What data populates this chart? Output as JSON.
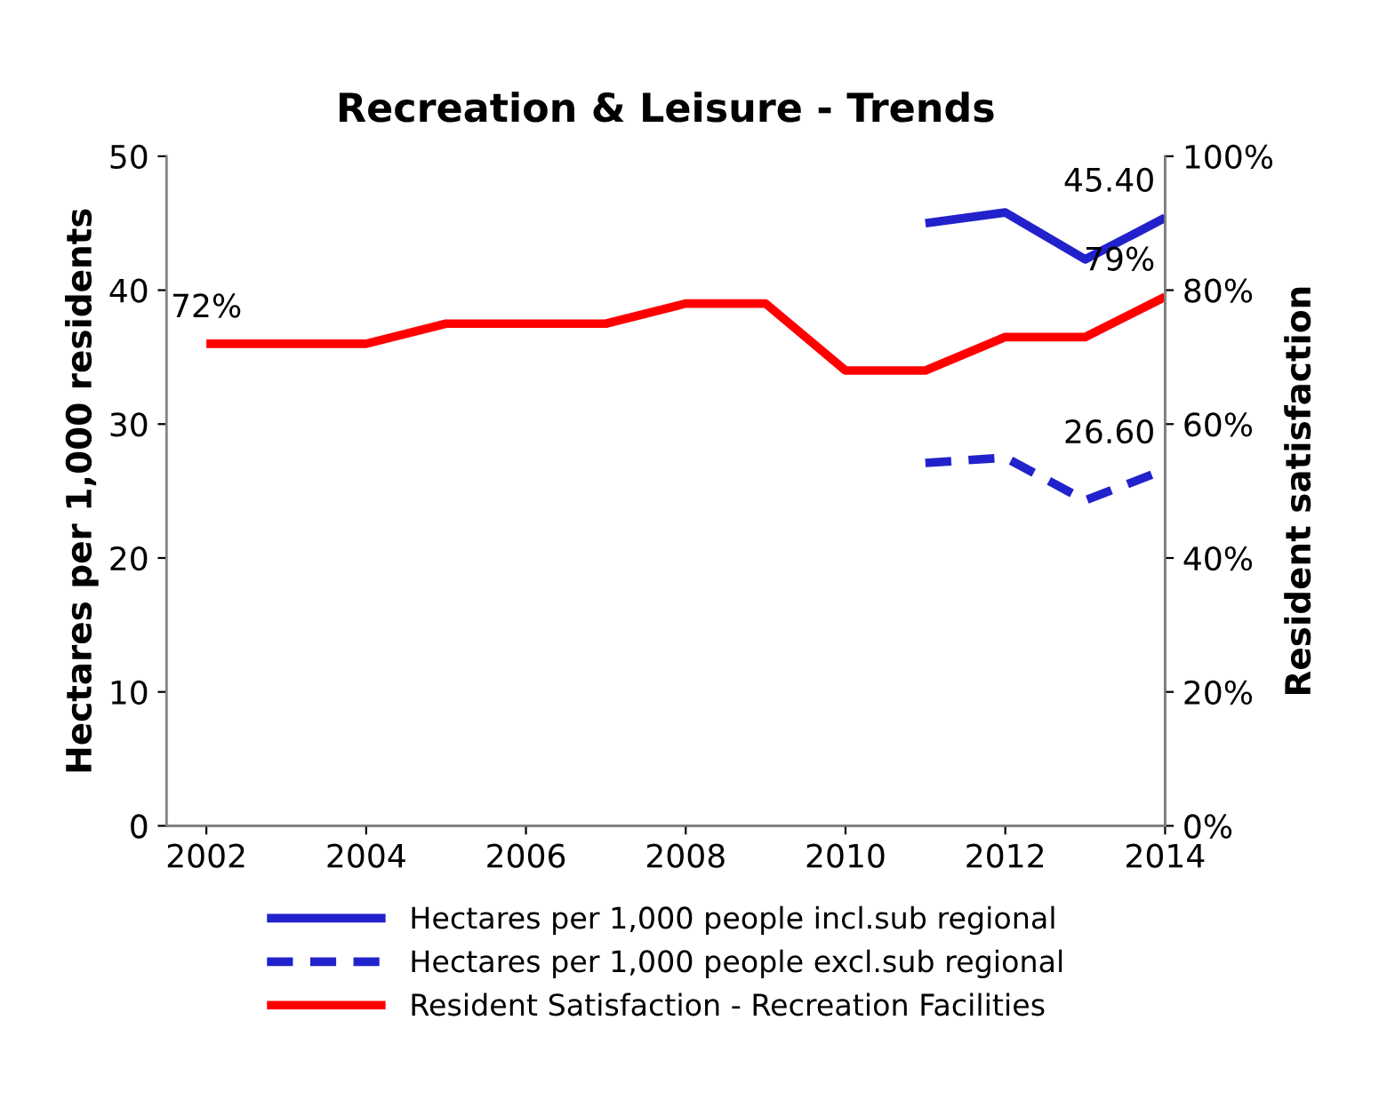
{
  "chart_data": {
    "type": "line",
    "title": "Recreation & Leisure - Trends",
    "ylabel": "Hectares per 1,000 residents",
    "y2label": "Resident satisfaction",
    "x": [
      2002,
      2003,
      2004,
      2005,
      2006,
      2007,
      2008,
      2009,
      2010,
      2011,
      2012,
      2013,
      2014
    ],
    "series": [
      {
        "name": "Hectares per 1,000 people incl.sub regional",
        "color": "#2222cc",
        "line_style": "solid",
        "values": [
          null,
          null,
          null,
          null,
          null,
          null,
          null,
          null,
          null,
          45.0,
          45.8,
          42.3,
          45.4
        ],
        "value_labels": [
          null,
          null,
          null,
          null,
          null,
          null,
          null,
          null,
          null,
          null,
          null,
          null,
          "45.40"
        ]
      },
      {
        "name": "Hectares per 1,000 people excl.sub regional",
        "color": "#2222cc",
        "line_style": "dashed",
        "values": [
          null,
          null,
          null,
          null,
          null,
          null,
          null,
          null,
          null,
          27.1,
          27.5,
          24.3,
          26.6
        ],
        "value_labels": [
          null,
          null,
          null,
          null,
          null,
          null,
          null,
          null,
          null,
          null,
          null,
          null,
          "26.60"
        ]
      },
      {
        "name": "Resident Satisfaction - Recreation Facilities",
        "color": "#ff0000",
        "line_style": "solid",
        "axis": "y2",
        "values": [
          72,
          72,
          72,
          75,
          75,
          75,
          78,
          78,
          68,
          68,
          73,
          73,
          79
        ],
        "value_labels": [
          "72%",
          null,
          null,
          null,
          null,
          null,
          null,
          null,
          null,
          null,
          null,
          null,
          "79%"
        ]
      }
    ],
    "xlim": [
      2001.5,
      2014
    ],
    "xticks": [
      2002,
      2004,
      2006,
      2008,
      2010,
      2012,
      2014
    ],
    "ylim": [
      0,
      50
    ],
    "yticks": [
      0,
      10,
      20,
      30,
      40,
      50
    ],
    "y2lim": [
      0,
      100
    ],
    "y2ticks": [
      {
        "value": 0,
        "label": "0%"
      },
      {
        "value": 20,
        "label": "20%"
      },
      {
        "value": 40,
        "label": "40%"
      },
      {
        "value": 60,
        "label": "60%"
      },
      {
        "value": 80,
        "label": "80%"
      },
      {
        "value": 100,
        "label": "100%"
      }
    ],
    "grid": false,
    "legend": "bottom",
    "marker": "none"
  }
}
